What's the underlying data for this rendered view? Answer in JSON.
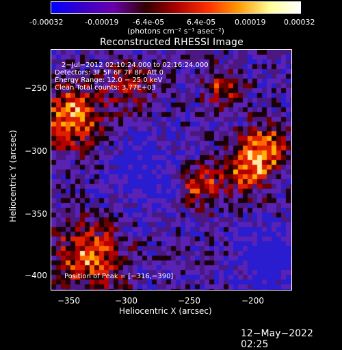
{
  "colorbar": {
    "ticks": [
      "-0.00032",
      "-0.00019",
      "-6.4e-05",
      "6.4e-05",
      "0.00019",
      "0.00032"
    ],
    "unit_label": "(photons cm⁻² s⁻¹ asec⁻²)",
    "colors": [
      "#0000ff",
      "#3a00c8",
      "#6a00aa",
      "#300000",
      "#aa0000",
      "#ff3000",
      "#ff9900",
      "#ffff99",
      "#ffffff"
    ]
  },
  "plot": {
    "title": "Reconstructed RHESSI Image",
    "xlabel": "Heliocentric X (arcsec)",
    "ylabel": "Heliocentric Y (arcsec)",
    "xticks": [
      "−350",
      "−300",
      "−250",
      "−200"
    ],
    "yticks": [
      "−250",
      "−300",
      "−350",
      "−400"
    ],
    "info": [
      "2−Jul−2012 02:10:24.000 to 02:16:24.000",
      "Detectors: 3F 5F 6F 7F 8F, Att 0",
      "Energy Range: 12.0 − 25.0 keV",
      "Clean     Total counts: 3.77E+03"
    ],
    "peak": "Position of Peak = [−316,−390]"
  },
  "footer": {
    "timestamp": "12−May−2022 02:25"
  }
}
